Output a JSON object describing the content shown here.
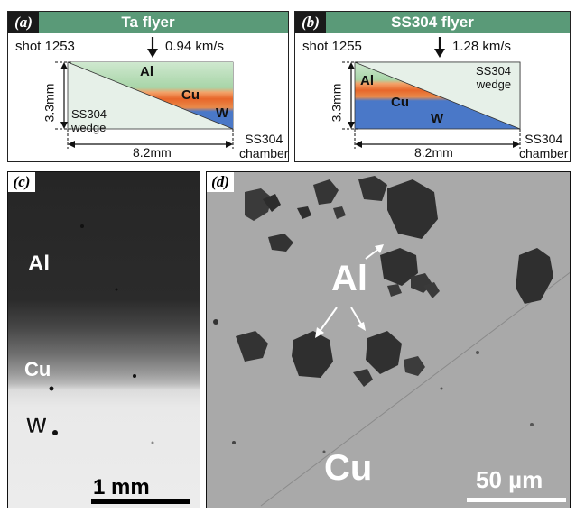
{
  "panel_a": {
    "letter": "(a)",
    "title": "Ta flyer",
    "shot": "shot 1253",
    "velocity": "0.94 km/s",
    "height_label": "3.3mm",
    "width_label": "8.2mm",
    "layer_al": "Al",
    "layer_cu": "Cu",
    "layer_w": "W",
    "wedge_line1": "SS304",
    "wedge_line2": "wedge",
    "chamber_line1": "SS304",
    "chamber_line2": "chamber"
  },
  "panel_b": {
    "letter": "(b)",
    "title": "SS304 flyer",
    "shot": "shot 1255",
    "velocity": "1.28 km/s",
    "height_label": "3.3mm",
    "width_label": "8.2mm",
    "layer_al": "Al",
    "layer_cu": "Cu",
    "layer_w": "W",
    "wedge_line1": "SS304",
    "wedge_line2": "wedge",
    "chamber_line1": "SS304",
    "chamber_line2": "chamber"
  },
  "panel_c": {
    "letter": "(c)",
    "label_al": "Al",
    "label_cu": "Cu",
    "label_w": "W",
    "scale_bar": "1 mm"
  },
  "panel_d": {
    "letter": "(d)",
    "label_al": "Al",
    "label_cu": "Cu",
    "scale_bar": "50 µm"
  },
  "colors": {
    "header_green": "#5a9a78",
    "al_layer": "#a8d5a8",
    "cu_layer": "#e8662a",
    "w_layer": "#4a78c8",
    "wedge_fill": "#e6f0e8"
  }
}
